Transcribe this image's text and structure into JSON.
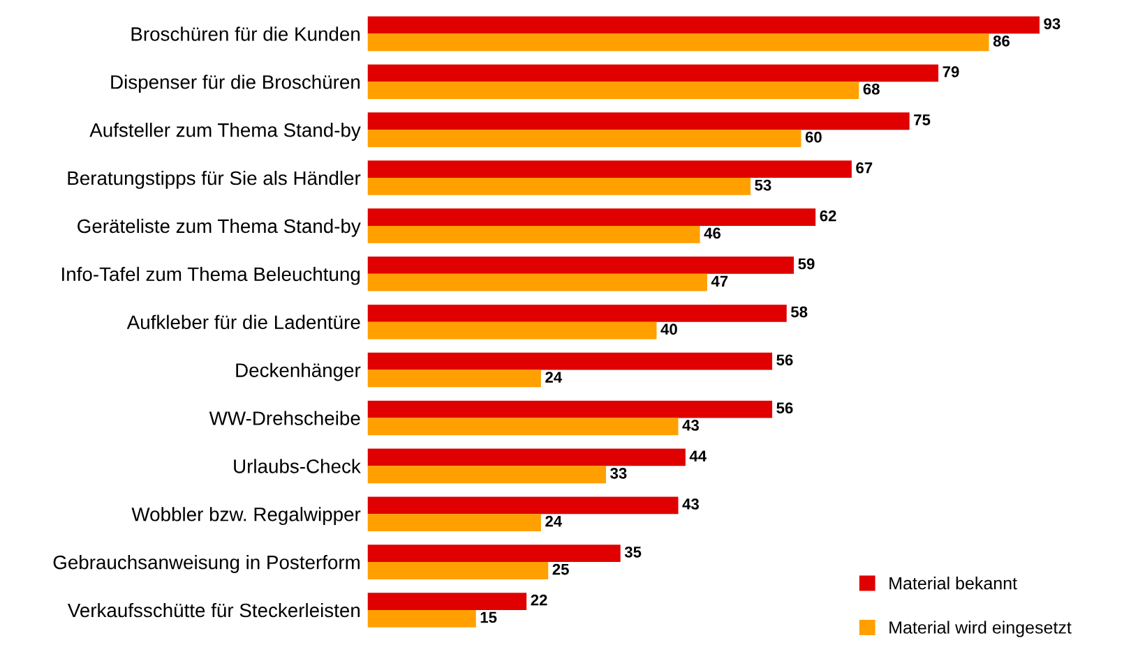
{
  "chart_data": {
    "type": "bar",
    "orientation": "horizontal",
    "categories": [
      "Broschüren für die Kunden",
      "Dispenser für die Broschüren",
      "Aufsteller zum Thema Stand-by",
      "Beratungstipps für Sie als Händler",
      "Geräteliste zum Thema Stand-by",
      "Info-Tafel zum Thema Beleuchtung",
      "Aufkleber für die Ladentüre",
      "Deckenhänger",
      "WW-Drehscheibe",
      "Urlaubs-Check",
      "Wobbler bzw. Regalwipper",
      "Gebrauchsanweisung in Posterform",
      "Verkaufsschütte für Steckerleisten"
    ],
    "series": [
      {
        "name": "Material bekannt",
        "color": "#e00000",
        "values": [
          93,
          79,
          75,
          67,
          62,
          59,
          58,
          56,
          56,
          44,
          43,
          35,
          22
        ]
      },
      {
        "name": "Material wird eingesetzt",
        "color": "#ffa000",
        "values": [
          86,
          68,
          60,
          53,
          46,
          47,
          40,
          24,
          43,
          33,
          24,
          25,
          15
        ]
      }
    ],
    "tick_labels": "y",
    "data_labels": true,
    "legend": "bottom right",
    "grid": false
  }
}
